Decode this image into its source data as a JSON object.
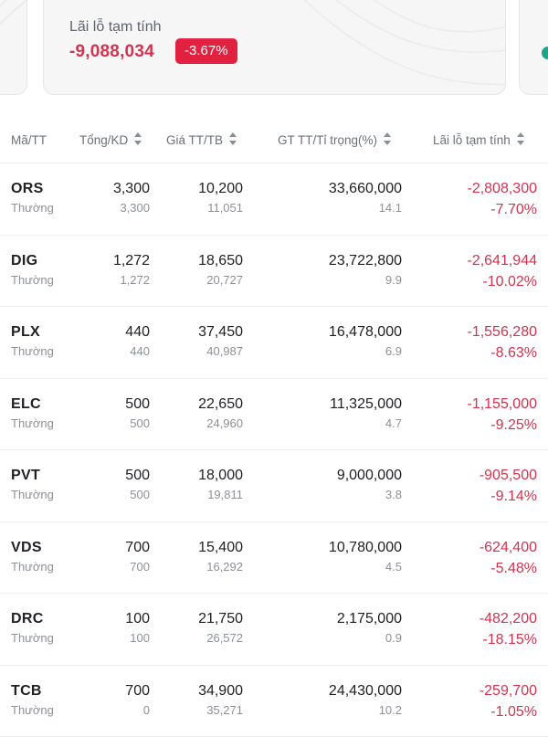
{
  "summary": {
    "pnl_label": "Lãi lỗ tạm tính",
    "pnl_value": "-9,088,034",
    "pnl_percent": "-3.67%",
    "negative_color": "#d2334f",
    "badge_color": "#e2203f"
  },
  "table": {
    "headers": {
      "symbol": "Mã/TT",
      "quantity": "Tổng/KD",
      "price": "Giá TT/TB",
      "value": "GT TT/Tỉ trọng(%)",
      "pnl": "Lãi lỗ tạm tính"
    },
    "rows": [
      {
        "symbol": "ORS",
        "status": "Thường",
        "total": "3,300",
        "tradable": "3,300",
        "market_price": "10,200",
        "avg_price": "11,051",
        "market_value": "33,660,000",
        "weight": "14.1",
        "pnl": "-2,808,300",
        "pnl_pct": "-7.70%"
      },
      {
        "symbol": "DIG",
        "status": "Thường",
        "total": "1,272",
        "tradable": "1,272",
        "market_price": "18,650",
        "avg_price": "20,727",
        "market_value": "23,722,800",
        "weight": "9.9",
        "pnl": "-2,641,944",
        "pnl_pct": "-10.02%"
      },
      {
        "symbol": "PLX",
        "status": "Thường",
        "total": "440",
        "tradable": "440",
        "market_price": "37,450",
        "avg_price": "40,987",
        "market_value": "16,478,000",
        "weight": "6.9",
        "pnl": "-1,556,280",
        "pnl_pct": "-8.63%"
      },
      {
        "symbol": "ELC",
        "status": "Thường",
        "total": "500",
        "tradable": "500",
        "market_price": "22,650",
        "avg_price": "24,960",
        "market_value": "11,325,000",
        "weight": "4.7",
        "pnl": "-1,155,000",
        "pnl_pct": "-9.25%"
      },
      {
        "symbol": "PVT",
        "status": "Thường",
        "total": "500",
        "tradable": "500",
        "market_price": "18,000",
        "avg_price": "19,811",
        "market_value": "9,000,000",
        "weight": "3.8",
        "pnl": "-905,500",
        "pnl_pct": "-9.14%"
      },
      {
        "symbol": "VDS",
        "status": "Thường",
        "total": "700",
        "tradable": "700",
        "market_price": "15,400",
        "avg_price": "16,292",
        "market_value": "10,780,000",
        "weight": "4.5",
        "pnl": "-624,400",
        "pnl_pct": "-5.48%"
      },
      {
        "symbol": "DRC",
        "status": "Thường",
        "total": "100",
        "tradable": "100",
        "market_price": "21,750",
        "avg_price": "26,572",
        "market_value": "2,175,000",
        "weight": "0.9",
        "pnl": "-482,200",
        "pnl_pct": "-18.15%"
      },
      {
        "symbol": "TCB",
        "status": "Thường",
        "total": "700",
        "tradable": "0",
        "market_price": "34,900",
        "avg_price": "35,271",
        "market_value": "24,430,000",
        "weight": "10.2",
        "pnl": "-259,700",
        "pnl_pct": "-1.05%"
      }
    ]
  },
  "icons": {
    "sort": "sort-icon",
    "status_dot": "status-dot-icon"
  }
}
